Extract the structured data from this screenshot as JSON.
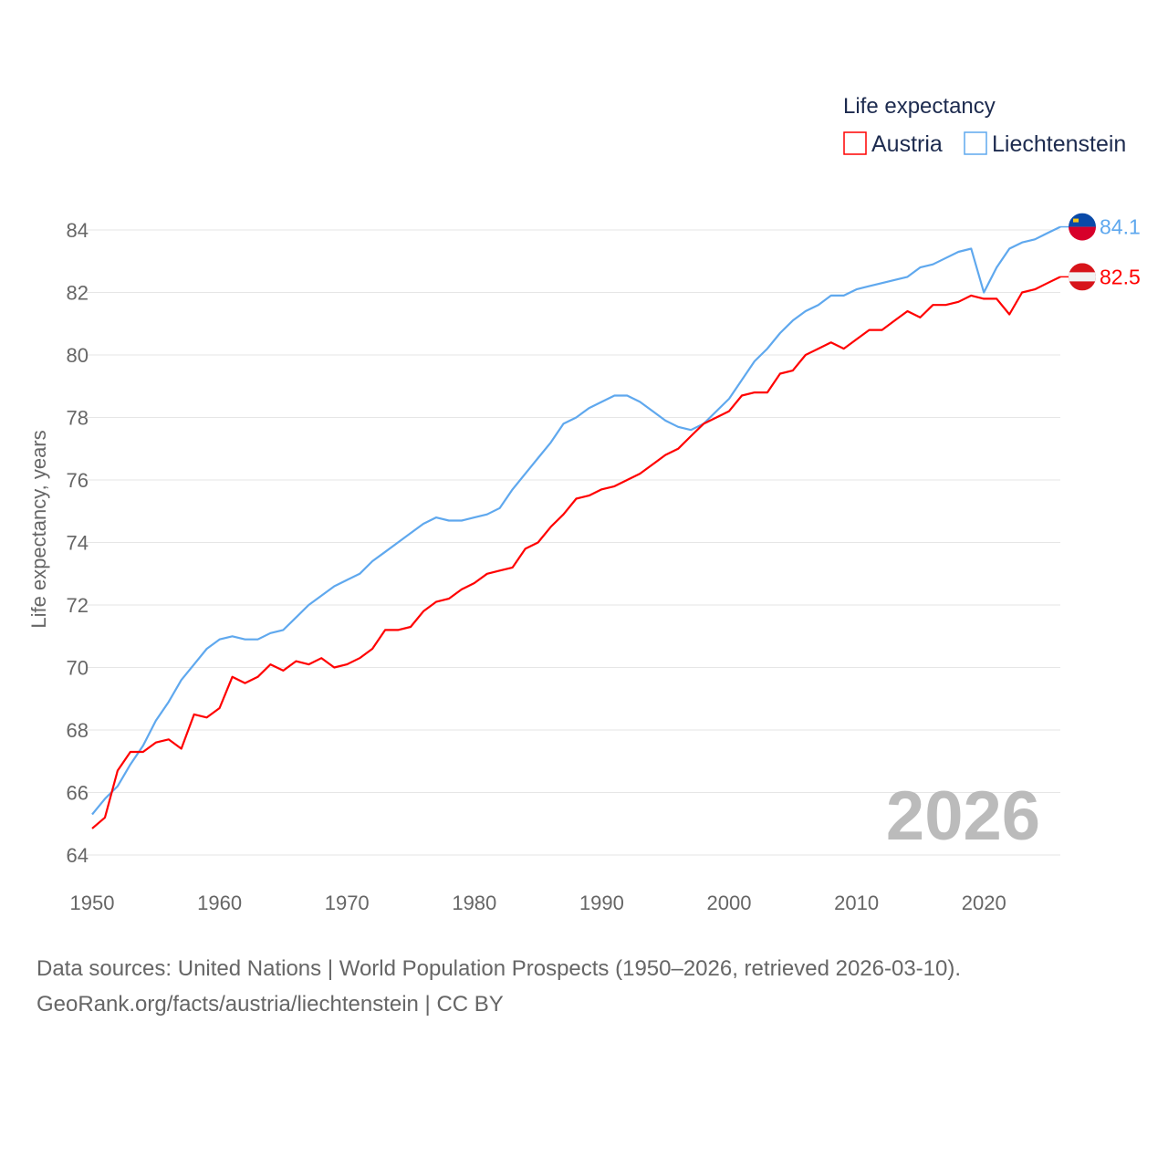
{
  "chart_data": {
    "type": "line",
    "title": "Life expectancy",
    "xlabel": "",
    "ylabel": "Life expectancy, years",
    "xlim": [
      1950,
      2026
    ],
    "ylim": [
      64,
      84
    ],
    "x_ticks": [
      "1950",
      "1960",
      "1970",
      "1980",
      "1990",
      "2000",
      "2010",
      "2020"
    ],
    "y_ticks": [
      "64",
      "66",
      "68",
      "70",
      "72",
      "74",
      "76",
      "78",
      "80",
      "82",
      "84"
    ],
    "grid": true,
    "legend_position": "top-right",
    "year_watermark": "2026",
    "x": [
      1950,
      1951,
      1952,
      1953,
      1954,
      1955,
      1956,
      1957,
      1958,
      1959,
      1960,
      1961,
      1962,
      1963,
      1964,
      1965,
      1966,
      1967,
      1968,
      1969,
      1970,
      1971,
      1972,
      1973,
      1974,
      1975,
      1976,
      1977,
      1978,
      1979,
      1980,
      1981,
      1982,
      1983,
      1984,
      1985,
      1986,
      1987,
      1988,
      1989,
      1990,
      1991,
      1992,
      1993,
      1994,
      1995,
      1996,
      1997,
      1998,
      1999,
      2000,
      2001,
      2002,
      2003,
      2004,
      2005,
      2006,
      2007,
      2008,
      2009,
      2010,
      2011,
      2012,
      2013,
      2014,
      2015,
      2016,
      2017,
      2018,
      2019,
      2020,
      2021,
      2022,
      2023,
      2024,
      2025,
      2026
    ],
    "series": [
      {
        "name": "Austria",
        "color": "#ff0000",
        "end_label": "82.5",
        "values": [
          64.85,
          65.2,
          66.7,
          67.3,
          67.3,
          67.6,
          67.7,
          67.4,
          68.5,
          68.4,
          68.7,
          69.7,
          69.5,
          69.7,
          70.1,
          69.9,
          70.2,
          70.1,
          70.3,
          70.0,
          70.1,
          70.3,
          70.6,
          71.2,
          71.2,
          71.3,
          71.8,
          72.1,
          72.2,
          72.5,
          72.7,
          73.0,
          73.1,
          73.2,
          73.8,
          74.0,
          74.5,
          74.9,
          75.4,
          75.5,
          75.7,
          75.8,
          76.0,
          76.2,
          76.5,
          76.8,
          77.0,
          77.4,
          77.8,
          78.0,
          78.2,
          78.7,
          78.8,
          78.8,
          79.4,
          79.5,
          80.0,
          80.2,
          80.4,
          80.2,
          80.5,
          80.8,
          80.8,
          81.1,
          81.4,
          81.2,
          81.6,
          81.6,
          81.7,
          81.9,
          81.8,
          81.8,
          81.3,
          82.0,
          82.1,
          82.3,
          82.5
        ]
      },
      {
        "name": "Liechtenstein",
        "color": "#5fa8ee",
        "end_label": "84.1",
        "values": [
          65.3,
          65.8,
          66.2,
          66.9,
          67.5,
          68.3,
          68.9,
          69.6,
          70.1,
          70.6,
          70.9,
          71.0,
          70.9,
          70.9,
          71.1,
          71.2,
          71.6,
          72.0,
          72.3,
          72.6,
          72.8,
          73.0,
          73.4,
          73.7,
          74.0,
          74.3,
          74.6,
          74.8,
          74.7,
          74.7,
          74.8,
          74.9,
          75.1,
          75.7,
          76.2,
          76.7,
          77.2,
          77.8,
          78.0,
          78.3,
          78.5,
          78.7,
          78.7,
          78.5,
          78.2,
          77.9,
          77.7,
          77.6,
          77.8,
          78.2,
          78.6,
          79.2,
          79.8,
          80.2,
          80.7,
          81.1,
          81.4,
          81.6,
          81.9,
          81.9,
          82.1,
          82.2,
          82.3,
          82.4,
          82.5,
          82.8,
          82.9,
          83.1,
          83.3,
          83.4,
          82.0,
          82.8,
          83.4,
          83.6,
          83.7,
          83.9,
          84.1
        ]
      }
    ]
  },
  "footer": {
    "line1": "Data sources: United Nations | World Population Prospects (1950–2026, retrieved 2026-03-10).",
    "line2": "GeoRank.org/facts/austria/liechtenstein | CC BY"
  }
}
